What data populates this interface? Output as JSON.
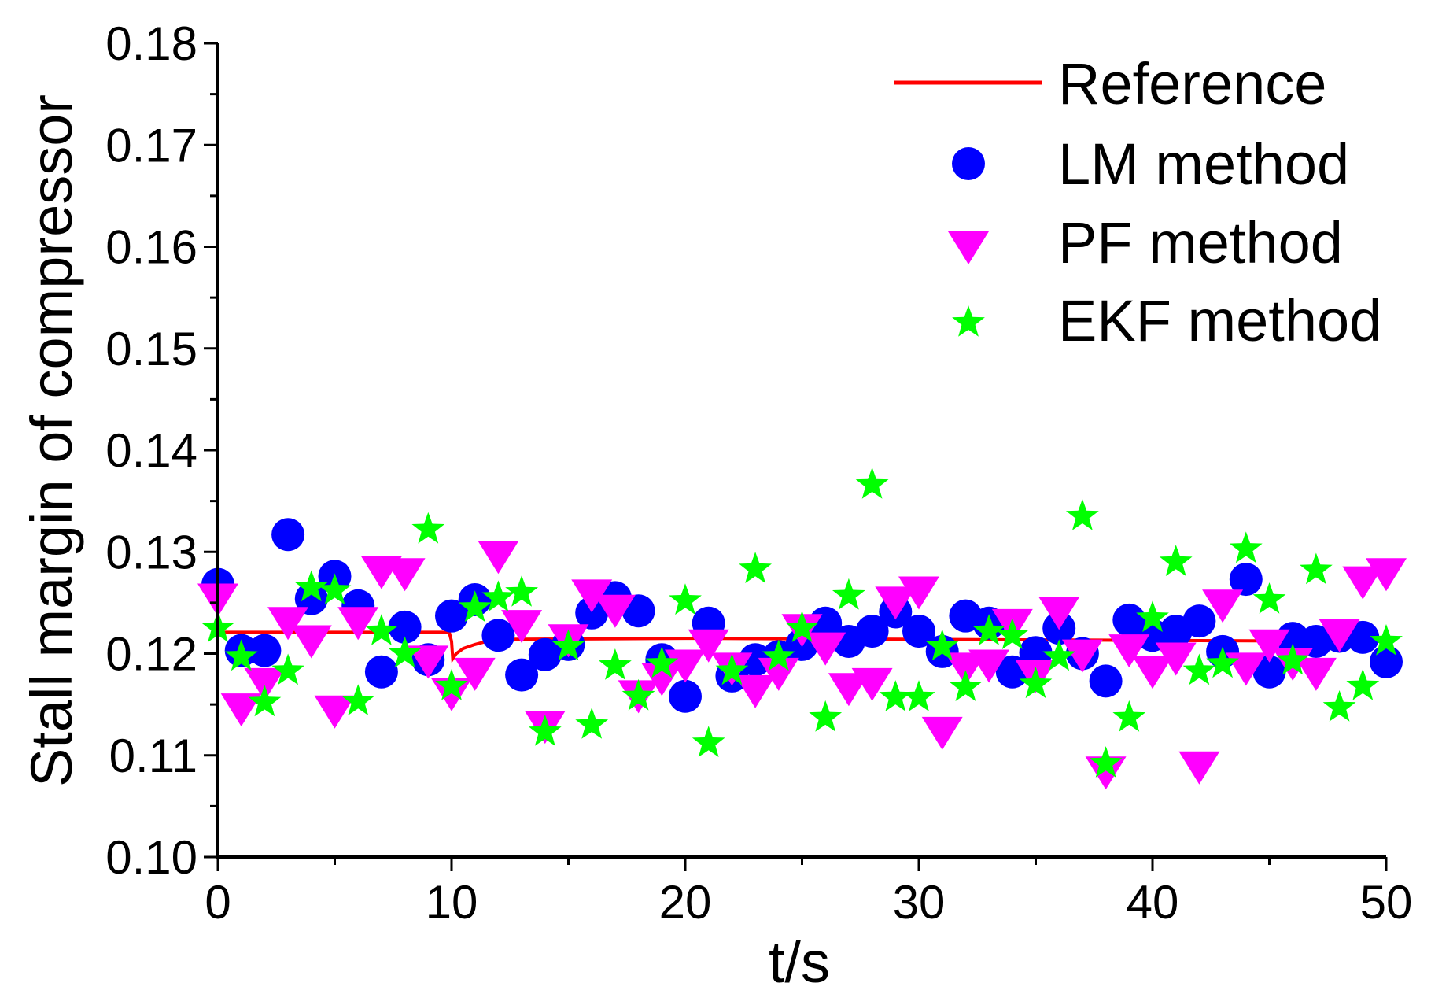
{
  "chart_data": {
    "type": "scatter",
    "title": "",
    "xlabel": "t/s",
    "ylabel": "Stall margin of compressor",
    "xlim": [
      0,
      50
    ],
    "ylim": [
      0.1,
      0.18
    ],
    "xticks": [
      0,
      10,
      20,
      30,
      40,
      50
    ],
    "xtick_labels": [
      "0",
      "10",
      "20",
      "30",
      "40",
      "50"
    ],
    "yticks": [
      0.1,
      0.11,
      0.12,
      0.13,
      0.14,
      0.15,
      0.16,
      0.17,
      0.18
    ],
    "ytick_labels": [
      "0.10",
      "0.11",
      "0.12",
      "0.13",
      "0.14",
      "0.15",
      "0.16",
      "0.17",
      "0.18"
    ],
    "grid": false,
    "legend_position": "top-right",
    "colors": {
      "reference": "#ff0000",
      "lm": "#0000ff",
      "pf": "#ff00ff",
      "ekf": "#00ff00"
    },
    "series": [
      {
        "name": "Reference",
        "kind": "line",
        "marker": "none",
        "x": [
          0,
          9.9,
          10.0,
          10.05,
          10.2,
          10.5,
          11.0,
          11.5,
          12.0,
          20,
          30,
          40,
          50
        ],
        "y": [
          0.1221,
          0.1221,
          0.1212,
          0.1195,
          0.12,
          0.1205,
          0.1209,
          0.1212,
          0.1214,
          0.1215,
          0.1214,
          0.1213,
          0.1212
        ]
      },
      {
        "name": "LM method",
        "kind": "scatter",
        "marker": "circle",
        "x": [
          0,
          1,
          2,
          3,
          4,
          5,
          6,
          7,
          8,
          9,
          10,
          11,
          12,
          13,
          14,
          15,
          16,
          17,
          18,
          19,
          20,
          21,
          22,
          23,
          24,
          25,
          26,
          27,
          28,
          29,
          30,
          31,
          32,
          33,
          34,
          35,
          36,
          37,
          38,
          39,
          40,
          41,
          42,
          43,
          44,
          45,
          46,
          47,
          48,
          49,
          50
        ],
        "y": [
          0.1268,
          0.1203,
          0.1203,
          0.1317,
          0.1254,
          0.1276,
          0.1247,
          0.1182,
          0.1226,
          0.1194,
          0.1237,
          0.1253,
          0.1218,
          0.1179,
          0.1199,
          0.1209,
          0.124,
          0.1255,
          0.1242,
          0.1194,
          0.1158,
          0.123,
          0.1178,
          0.1194,
          0.1197,
          0.1209,
          0.123,
          0.1212,
          0.1222,
          0.1241,
          0.1222,
          0.1202,
          0.1237,
          0.123,
          0.1182,
          0.1201,
          0.1225,
          0.12,
          0.1173,
          0.1233,
          0.1218,
          0.1222,
          0.1232,
          0.1202,
          0.1273,
          0.1182,
          0.1215,
          0.1212,
          0.1217,
          0.1216,
          0.1192
        ]
      },
      {
        "name": "PF method",
        "kind": "scatter",
        "marker": "triangle-down",
        "x": [
          0,
          1,
          2,
          3,
          4,
          5,
          6,
          7,
          8,
          9,
          10,
          11,
          12,
          13,
          14,
          15,
          16,
          17,
          18,
          19,
          20,
          21,
          22,
          23,
          24,
          25,
          26,
          27,
          28,
          29,
          30,
          31,
          32,
          33,
          34,
          35,
          36,
          37,
          38,
          39,
          40,
          41,
          42,
          43,
          44,
          45,
          46,
          47,
          48,
          49,
          50
        ],
        "y": [
          0.1258,
          0.115,
          0.1175,
          0.1235,
          0.1217,
          0.1148,
          0.1235,
          0.1285,
          0.1283,
          0.1197,
          0.1165,
          0.1185,
          0.13,
          0.1232,
          0.1133,
          0.1218,
          0.1262,
          0.1247,
          0.1163,
          0.118,
          0.1193,
          0.1213,
          0.119,
          0.1168,
          0.1185,
          0.1228,
          0.121,
          0.117,
          0.1175,
          0.1255,
          0.1265,
          0.1127,
          0.119,
          0.1193,
          0.1233,
          0.1183,
          0.1245,
          0.1203,
          0.1088,
          0.1208,
          0.1187,
          0.12,
          0.1093,
          0.1252,
          0.119,
          0.1213,
          0.1195,
          0.1185,
          0.1223,
          0.1275,
          0.1283
        ]
      },
      {
        "name": "EKF method",
        "kind": "scatter",
        "marker": "star",
        "x": [
          0,
          1,
          2,
          3,
          4,
          5,
          6,
          7,
          8,
          9,
          10,
          11,
          12,
          13,
          14,
          15,
          16,
          17,
          18,
          19,
          20,
          21,
          22,
          23,
          24,
          25,
          26,
          27,
          28,
          29,
          30,
          31,
          32,
          33,
          34,
          35,
          36,
          37,
          38,
          39,
          40,
          41,
          42,
          43,
          44,
          45,
          46,
          47,
          48,
          49,
          50
        ],
        "y": [
          0.1225,
          0.1197,
          0.1152,
          0.1183,
          0.1265,
          0.1262,
          0.1153,
          0.1222,
          0.12,
          0.1322,
          0.1168,
          0.1245,
          0.1255,
          0.126,
          0.1123,
          0.1207,
          0.113,
          0.1188,
          0.1158,
          0.119,
          0.1252,
          0.1112,
          0.1183,
          0.1283,
          0.1197,
          0.1225,
          0.1137,
          0.1257,
          0.1366,
          0.1157,
          0.1157,
          0.1207,
          0.1167,
          0.1222,
          0.1218,
          0.117,
          0.1197,
          0.1335,
          0.1092,
          0.1137,
          0.1235,
          0.129,
          0.1183,
          0.119,
          0.1303,
          0.1253,
          0.1193,
          0.1282,
          0.1147,
          0.1168,
          0.1212
        ]
      }
    ]
  }
}
